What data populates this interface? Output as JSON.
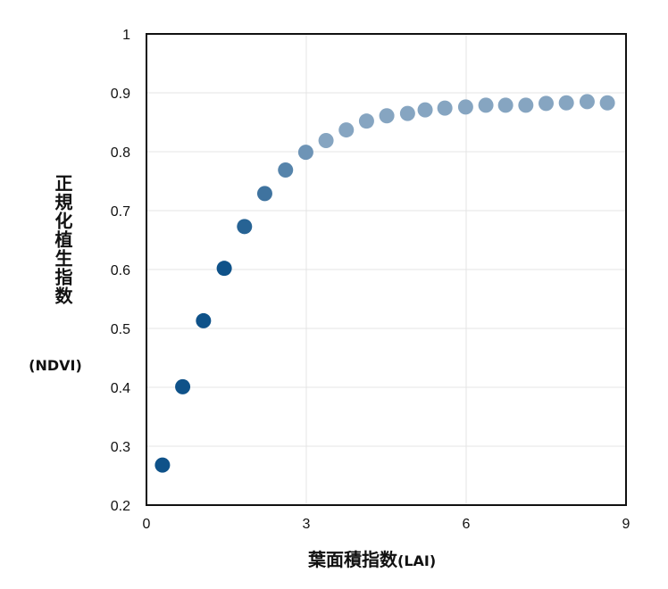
{
  "chart_data": {
    "type": "scatter",
    "xlabel_main": "葉面積指数",
    "xlabel_sub": "(LAI)",
    "ylabel_main": "正規化植生指数",
    "ylabel_sub": "(NDVI)",
    "xlim": [
      0,
      9
    ],
    "ylim": [
      0.2,
      1.0
    ],
    "x_ticks": [
      0,
      3,
      6,
      9
    ],
    "x_tick_labels": [
      "0",
      "3",
      "6",
      "9"
    ],
    "y_ticks": [
      0.2,
      0.3,
      0.4,
      0.5,
      0.6,
      0.7,
      0.8,
      0.9,
      1.0
    ],
    "y_tick_labels": [
      "0.2",
      "0.3",
      "0.4",
      "0.5",
      "0.6",
      "0.7",
      "0.8",
      "0.9",
      "1"
    ],
    "grid": true,
    "points": [
      {
        "x": 0.3,
        "y": 0.268
      },
      {
        "x": 0.68,
        "y": 0.401
      },
      {
        "x": 1.07,
        "y": 0.513
      },
      {
        "x": 1.46,
        "y": 0.602
      },
      {
        "x": 1.84,
        "y": 0.673
      },
      {
        "x": 2.22,
        "y": 0.729
      },
      {
        "x": 2.61,
        "y": 0.769
      },
      {
        "x": 2.99,
        "y": 0.799
      },
      {
        "x": 3.37,
        "y": 0.819
      },
      {
        "x": 3.75,
        "y": 0.837
      },
      {
        "x": 4.13,
        "y": 0.852
      },
      {
        "x": 4.51,
        "y": 0.861
      },
      {
        "x": 4.9,
        "y": 0.865
      },
      {
        "x": 5.23,
        "y": 0.871
      },
      {
        "x": 5.6,
        "y": 0.874
      },
      {
        "x": 5.99,
        "y": 0.876
      },
      {
        "x": 6.37,
        "y": 0.879
      },
      {
        "x": 6.74,
        "y": 0.879
      },
      {
        "x": 7.12,
        "y": 0.879
      },
      {
        "x": 7.5,
        "y": 0.882
      },
      {
        "x": 7.88,
        "y": 0.883
      },
      {
        "x": 8.27,
        "y": 0.885
      },
      {
        "x": 8.65,
        "y": 0.883
      }
    ],
    "colors": {
      "dark_point": "#0f5289",
      "light_point": "#86a5c1",
      "grid": "#e4e4e4",
      "axis": "#111111"
    }
  }
}
